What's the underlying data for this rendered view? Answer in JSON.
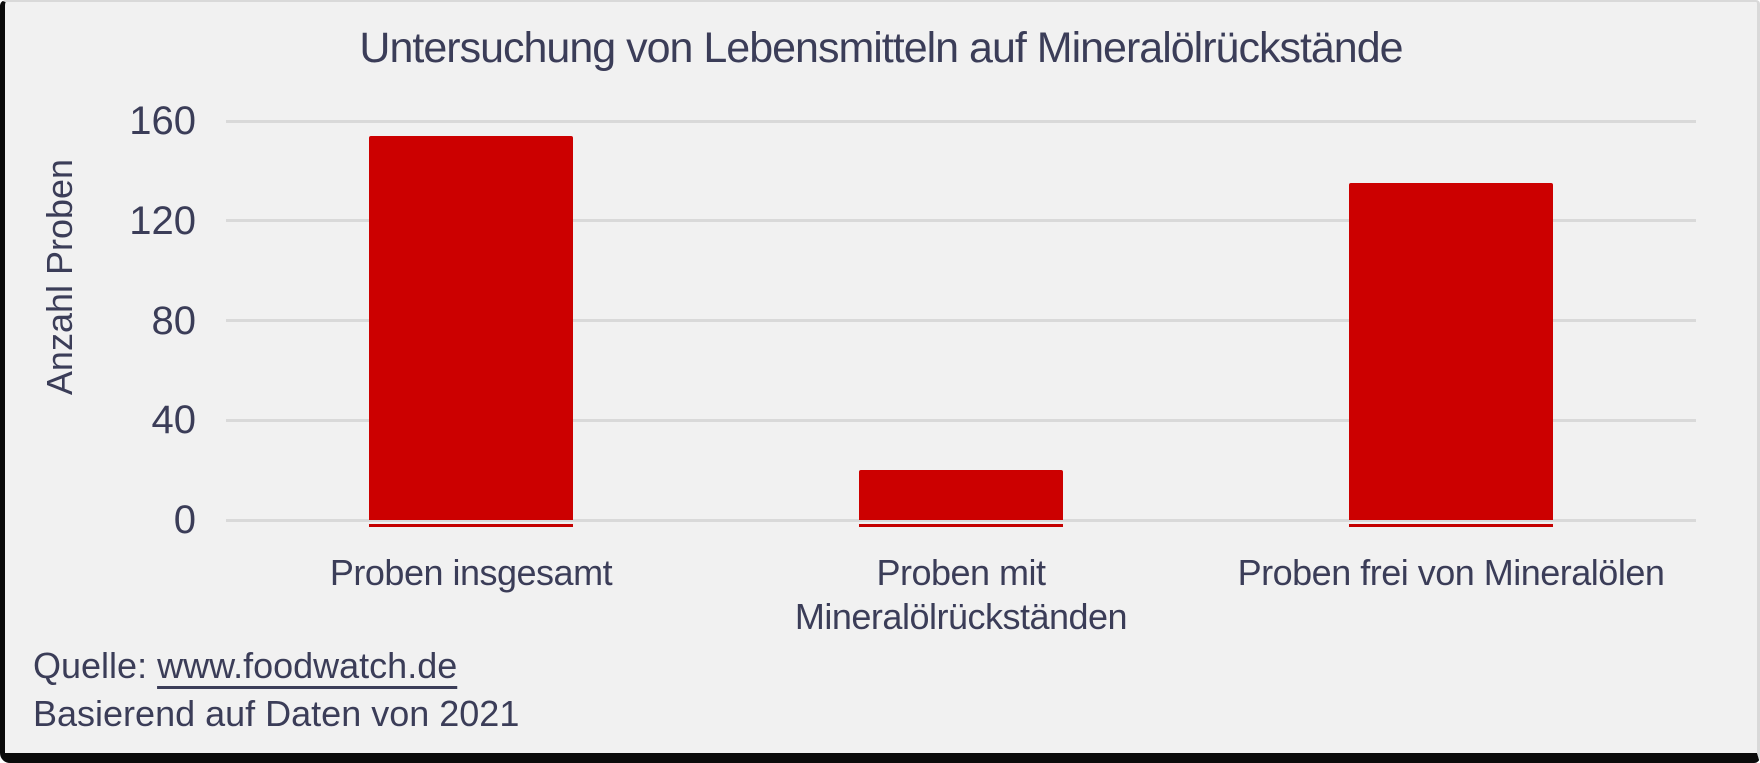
{
  "chart_data": {
    "type": "bar",
    "title": "Untersuchung von Lebensmitteln auf Mineralölrückstände",
    "ylabel": "Anzahl Proben",
    "xlabel": "",
    "categories": [
      "Proben insgesamt",
      "Proben mit\nMineralölrückständen",
      "Proben frei von Mineralölen"
    ],
    "values": [
      154,
      20,
      135
    ],
    "yticks": [
      0,
      40,
      80,
      120,
      160
    ],
    "ylim": [
      0,
      160
    ],
    "grid": true,
    "legend": false,
    "bar_color": "#cc0000",
    "bar_edge_color": "#c40000"
  },
  "source": {
    "prefix": "Quelle: ",
    "link": "www.foodwatch.de",
    "line2": "Basierend auf Daten von 2021"
  },
  "colors": {
    "background": "#f1f1f1",
    "text": "#3b3d58",
    "gridline": "#d9d9d9",
    "frame": "#0a0a0a"
  }
}
